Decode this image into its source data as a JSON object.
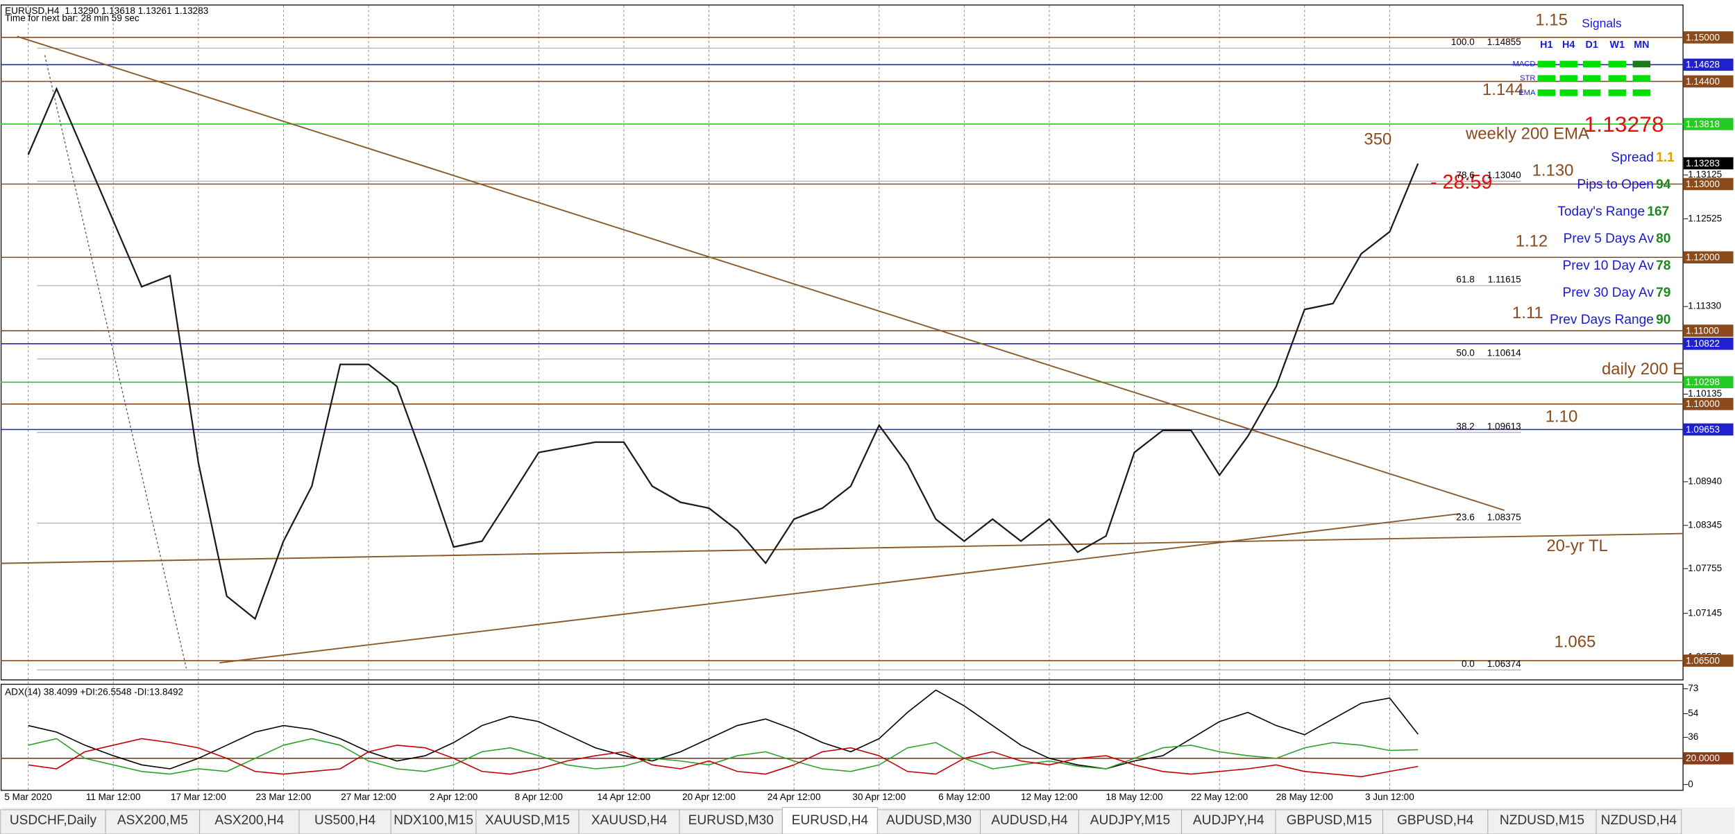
{
  "header": {
    "symbol": "EURUSD,H4",
    "ohlc": "1.13290 1.13618 1.13261 1.13283",
    "timer": "Time for next bar: 28 min 59 sec"
  },
  "chart_data": [
    {
      "type": "line",
      "color": "#1a1a1a",
      "categories": [
        "5 Mar 2020",
        null,
        null,
        "11 Mar 12:00",
        null,
        null,
        "17 Mar 12:00",
        null,
        null,
        "23 Mar 12:00",
        null,
        null,
        "27 Mar 12:00",
        null,
        null,
        "2 Apr 12:00",
        null,
        null,
        "8 Apr 12:00",
        null,
        null,
        "14 Apr 12:00",
        null,
        null,
        "20 Apr 12:00",
        null,
        null,
        "24 Apr 12:00",
        null,
        null,
        "30 Apr 12:00",
        null,
        null,
        "6 May 12:00",
        null,
        null,
        "12 May 12:00",
        null,
        null,
        "18 May 12:00",
        null,
        null,
        "22 May 12:00",
        null,
        null,
        "28 May 12:00",
        null,
        null,
        "3 Jun 12:00",
        null
      ],
      "values": [
        1.134,
        1.143,
        1.134,
        1.125,
        1.116,
        1.1175,
        1.092,
        1.0738,
        1.0707,
        1.0813,
        1.0888,
        1.1054,
        1.1054,
        1.1024,
        1.0918,
        1.0805,
        1.0813,
        1.0873,
        1.0934,
        1.0941,
        1.0948,
        1.0948,
        1.0888,
        1.0866,
        1.0858,
        1.0828,
        1.0783,
        1.0843,
        1.0858,
        1.0888,
        1.0971,
        1.0918,
        1.0843,
        1.0813,
        1.0843,
        1.0813,
        1.0843,
        1.0798,
        1.082,
        1.0934,
        1.0964,
        1.0964,
        1.0903,
        1.0956,
        1.1024,
        1.1129,
        1.1137,
        1.1205,
        1.1235,
        1.1328
      ],
      "ylim": [
        1.0623,
        1.1545
      ],
      "yticks": [
        {
          "value": 1.13125,
          "label": "1.13125"
        },
        {
          "value": 1.12525,
          "label": "1.12525"
        },
        {
          "value": 1.1133,
          "label": "1.11330"
        },
        {
          "value": 1.10135,
          "label": "1.10135"
        },
        {
          "value": 1.0894,
          "label": "1.08940"
        },
        {
          "value": 1.08345,
          "label": "1.08345"
        },
        {
          "value": 1.07755,
          "label": "1.07755"
        },
        {
          "value": 1.07145,
          "label": "1.07145"
        },
        {
          "value": 1.0655,
          "label": "1.06550"
        }
      ],
      "levels": [
        {
          "value": 1.15,
          "label": "1.15000",
          "color": "#8b4a1c"
        },
        {
          "value": 1.14628,
          "label": "1.14628",
          "color": "#2020d0"
        },
        {
          "value": 1.144,
          "label": "1.14400",
          "color": "#8b4a1c"
        },
        {
          "value": 1.13818,
          "label": "1.13818",
          "color": "#22cc22"
        },
        {
          "value": 1.13,
          "label": "1.13000",
          "color": "#8b4a1c"
        },
        {
          "value": 1.12,
          "label": "1.12000",
          "color": "#8b4a1c"
        },
        {
          "value": 1.11,
          "label": "1.11000",
          "color": "#8b4a1c"
        },
        {
          "value": 1.10822,
          "label": "1.10822",
          "color": "#2020d0"
        },
        {
          "value": 1.10298,
          "label": "1.10298",
          "color": "#22cc22"
        },
        {
          "value": 1.1,
          "label": "1.10000",
          "color": "#8b4a1c"
        },
        {
          "value": 1.09653,
          "label": "1.09653",
          "color": "#2020d0"
        },
        {
          "value": 1.065,
          "label": "1.06500",
          "color": "#8b4a1c"
        }
      ],
      "last_price": {
        "value": 1.13283,
        "label": "1.13283"
      },
      "fib": [
        {
          "level": "100.0",
          "price": {
            "value": 1.14855,
            "label": "1.14855"
          }
        },
        {
          "level": "78.6",
          "price": {
            "value": 1.1304,
            "label": "1.13040"
          }
        },
        {
          "level": "61.8",
          "price": {
            "value": 1.11615,
            "label": "1.11615"
          }
        },
        {
          "level": "50.0",
          "price": {
            "value": 1.10614,
            "label": "1.10614"
          }
        },
        {
          "level": "38.2",
          "price": {
            "value": 1.09613,
            "label": "1.09613"
          }
        },
        {
          "level": "23.6",
          "price": {
            "value": 1.08375,
            "label": "1.08375"
          }
        },
        {
          "level": "0.0",
          "price": {
            "value": 1.06374,
            "label": "1.06374"
          }
        }
      ],
      "annotations": [
        "1.15",
        "1.144",
        "1.130",
        "1.12",
        "1.11",
        "1.10",
        "1.065",
        "350",
        "weekly 200 EMA",
        "daily 200 E",
        "20-yr TL",
        "1.13278",
        "- 28:59"
      ]
    },
    {
      "type": "line",
      "title": "ADX(14) 38.4099 +DI:26.5548 -DI:13.8492",
      "ylim": [
        -4,
        76
      ],
      "yticks": [
        73,
        54,
        36,
        0
      ],
      "levels": [
        {
          "value": 20,
          "label": "20.0000",
          "color": "#8b3a1a"
        }
      ],
      "series": [
        {
          "color": "#000000",
          "values": [
            45,
            40,
            30,
            22,
            15,
            12,
            20,
            30,
            40,
            45,
            42,
            35,
            25,
            18,
            22,
            32,
            45,
            52,
            48,
            38,
            28,
            22,
            18,
            25,
            35,
            45,
            50,
            42,
            32,
            25,
            35,
            55,
            72,
            60,
            45,
            30,
            20,
            15,
            12,
            18,
            22,
            35,
            48,
            55,
            45,
            38,
            50,
            62,
            66,
            38.4099
          ]
        },
        {
          "color": "#2ca02c",
          "values": [
            30,
            35,
            20,
            15,
            10,
            8,
            12,
            10,
            20,
            30,
            35,
            30,
            18,
            12,
            10,
            15,
            25,
            28,
            22,
            15,
            12,
            14,
            20,
            18,
            15,
            22,
            25,
            18,
            12,
            10,
            15,
            28,
            32,
            20,
            12,
            15,
            18,
            14,
            12,
            20,
            28,
            30,
            25,
            22,
            20,
            28,
            32,
            30,
            26,
            26.5548
          ]
        },
        {
          "color": "#c00000",
          "values": [
            15,
            12,
            25,
            30,
            35,
            32,
            28,
            20,
            10,
            8,
            10,
            12,
            25,
            30,
            28,
            20,
            10,
            8,
            12,
            18,
            22,
            25,
            15,
            12,
            18,
            10,
            8,
            15,
            25,
            28,
            22,
            10,
            8,
            20,
            25,
            18,
            15,
            20,
            22,
            15,
            10,
            8,
            10,
            12,
            15,
            10,
            8,
            6,
            10,
            13.8492
          ]
        }
      ]
    }
  ],
  "signals": {
    "title": "Signals",
    "columns": [
      "H1",
      "H4",
      "D1",
      "W1",
      "MN"
    ],
    "rows": [
      {
        "name": "MACD",
        "colors": [
          "#00e000",
          "#00e000",
          "#00e000",
          "#00e000",
          "#1a7a1a"
        ]
      },
      {
        "name": "STR",
        "colors": [
          "#00e000",
          "#00e000",
          "#00e000",
          "#00e000",
          "#00e000"
        ]
      },
      {
        "name": "EMA",
        "colors": [
          "#00e000",
          "#00e000",
          "#00e000",
          "#00e000",
          "#00e000"
        ]
      }
    ]
  },
  "info": [
    {
      "label": "Spread",
      "value": "1.1"
    },
    {
      "label": "Pips to Open",
      "value": "94"
    },
    {
      "label": "Today's Range",
      "value": "167"
    },
    {
      "label": "Prev 5 Days Av",
      "value": "80"
    },
    {
      "label": "Prev 10 Day Av",
      "value": "78"
    },
    {
      "label": "Prev 30 Day Av",
      "value": "79"
    },
    {
      "label": "Prev Days Range",
      "value": "90"
    }
  ],
  "tabs": {
    "items": [
      "USDCHF,Daily",
      "ASX200,M5",
      "ASX200,H4",
      "US500,H4",
      "NDX100,M15",
      "XAUUSD,M15",
      "XAUUSD,H4",
      "EURUSD,M30",
      "EURUSD,H4",
      "AUDUSD,M30",
      "AUDUSD,H4",
      "AUDJPY,M15",
      "AUDJPY,H4",
      "GBPUSD,M15",
      "GBPUSD,H4",
      "NZDUSD,M15",
      "NZDUSD,H4"
    ],
    "active": 8
  }
}
